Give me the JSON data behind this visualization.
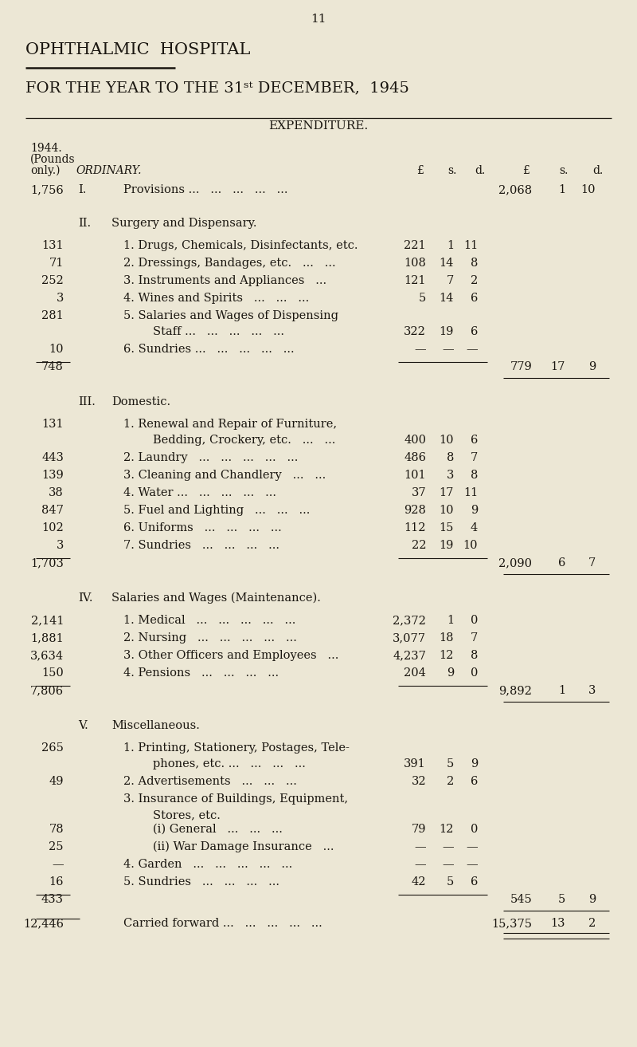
{
  "bg_color": "#ece7d5",
  "text_color": "#1a1610",
  "page_number": "11",
  "title1": "OPHTHALMIC  HOSPITAL",
  "title2": "FOR THE YEAR TO THE 31ˢᵗ DECEMBER,  1945",
  "expenditure_header": "EXPENDITURE.",
  "rows": [
    {
      "lv": "1,756",
      "roman": "I.",
      "desc": "Provisions ...   ...   ...   ...   ...",
      "iv": "",
      "is": "",
      "id": "",
      "rv": "2,068",
      "rs": "1",
      "rd": "10",
      "type": "main"
    },
    {
      "lv": "",
      "roman": "II.",
      "desc": "Surgery and Dispensary.",
      "iv": "",
      "is": "",
      "id": "",
      "rv": "",
      "rs": "",
      "rd": "",
      "type": "section"
    },
    {
      "lv": "131",
      "roman": "",
      "desc": "1. Drugs, Chemicals, Disinfectants, etc.",
      "iv": "221",
      "is": "1",
      "id": "11",
      "rv": "",
      "rs": "",
      "rd": "",
      "type": "sub"
    },
    {
      "lv": "71",
      "roman": "",
      "desc": "2. Dressings, Bandages, etc.   ...   ...",
      "iv": "108",
      "is": "14",
      "id": "8",
      "rv": "",
      "rs": "",
      "rd": "",
      "type": "sub"
    },
    {
      "lv": "252",
      "roman": "",
      "desc": "3. Instruments and Appliances   ...",
      "iv": "121",
      "is": "7",
      "id": "2",
      "rv": "",
      "rs": "",
      "rd": "",
      "type": "sub"
    },
    {
      "lv": "3",
      "roman": "",
      "desc": "4. Wines and Spirits   ...   ...   ...",
      "iv": "5",
      "is": "14",
      "id": "6",
      "rv": "",
      "rs": "",
      "rd": "",
      "type": "sub"
    },
    {
      "lv": "281",
      "roman": "",
      "desc": "5. Salaries and Wages of Dispensing",
      "iv": "",
      "is": "",
      "id": "",
      "rv": "",
      "rs": "",
      "rd": "",
      "type": "sub_a"
    },
    {
      "lv": "",
      "roman": "",
      "desc": "        Staff ...   ...   ...   ...   ...",
      "iv": "322",
      "is": "19",
      "id": "6",
      "rv": "",
      "rs": "",
      "rd": "",
      "type": "sub_b"
    },
    {
      "lv": "10",
      "roman": "",
      "desc": "6. Sundries ...   ...   ...   ...   ...",
      "iv": "—",
      "is": "—",
      "id": "—",
      "rv": "",
      "rs": "",
      "rd": "",
      "type": "sub"
    },
    {
      "lv": "748",
      "roman": "",
      "desc": "",
      "iv": "",
      "is": "",
      "id": "",
      "rv": "779",
      "rs": "17",
      "rd": "9",
      "type": "subtotal"
    },
    {
      "lv": "",
      "roman": "III.",
      "desc": "Domestic.",
      "iv": "",
      "is": "",
      "id": "",
      "rv": "",
      "rs": "",
      "rd": "",
      "type": "section"
    },
    {
      "lv": "131",
      "roman": "",
      "desc": "1. Renewal and Repair of Furniture,",
      "iv": "",
      "is": "",
      "id": "",
      "rv": "",
      "rs": "",
      "rd": "",
      "type": "sub_a"
    },
    {
      "lv": "",
      "roman": "",
      "desc": "        Bedding, Crockery, etc.   ...   ...",
      "iv": "400",
      "is": "10",
      "id": "6",
      "rv": "",
      "rs": "",
      "rd": "",
      "type": "sub_b"
    },
    {
      "lv": "443",
      "roman": "",
      "desc": "2. Laundry   ...   ...   ...   ...   ...",
      "iv": "486",
      "is": "8",
      "id": "7",
      "rv": "",
      "rs": "",
      "rd": "",
      "type": "sub"
    },
    {
      "lv": "139",
      "roman": "",
      "desc": "3. Cleaning and Chandlery   ...   ...",
      "iv": "101",
      "is": "3",
      "id": "8",
      "rv": "",
      "rs": "",
      "rd": "",
      "type": "sub"
    },
    {
      "lv": "38",
      "roman": "",
      "desc": "4. Water ...   ...   ...   ...   ...",
      "iv": "37",
      "is": "17",
      "id": "11",
      "rv": "",
      "rs": "",
      "rd": "",
      "type": "sub"
    },
    {
      "lv": "847",
      "roman": "",
      "desc": "5. Fuel and Lighting   ...   ...   ...",
      "iv": "928",
      "is": "10",
      "id": "9",
      "rv": "",
      "rs": "",
      "rd": "",
      "type": "sub"
    },
    {
      "lv": "102",
      "roman": "",
      "desc": "6. Uniforms   ...   ...   ...   ...",
      "iv": "112",
      "is": "15",
      "id": "4",
      "rv": "",
      "rs": "",
      "rd": "",
      "type": "sub"
    },
    {
      "lv": "3",
      "roman": "",
      "desc": "7. Sundries   ...   ...   ...   ...",
      "iv": "22",
      "is": "19",
      "id": "10",
      "rv": "",
      "rs": "",
      "rd": "",
      "type": "sub"
    },
    {
      "lv": "1,703",
      "roman": "",
      "desc": "",
      "iv": "",
      "is": "",
      "id": "",
      "rv": "2,090",
      "rs": "6",
      "rd": "7",
      "type": "subtotal"
    },
    {
      "lv": "",
      "roman": "IV.",
      "desc": "Salaries and Wages (Maintenance).",
      "iv": "",
      "is": "",
      "id": "",
      "rv": "",
      "rs": "",
      "rd": "",
      "type": "section"
    },
    {
      "lv": "2,141",
      "roman": "",
      "desc": "1. Medical   ...   ...   ...   ...   ...",
      "iv": "2,372",
      "is": "1",
      "id": "0",
      "rv": "",
      "rs": "",
      "rd": "",
      "type": "sub"
    },
    {
      "lv": "1,881",
      "roman": "",
      "desc": "2. Nursing   ...   ...   ...   ...   ...",
      "iv": "3,077",
      "is": "18",
      "id": "7",
      "rv": "",
      "rs": "",
      "rd": "",
      "type": "sub"
    },
    {
      "lv": "3,634",
      "roman": "",
      "desc": "3. Other Officers and Employees   ...",
      "iv": "4,237",
      "is": "12",
      "id": "8",
      "rv": "",
      "rs": "",
      "rd": "",
      "type": "sub"
    },
    {
      "lv": "150",
      "roman": "",
      "desc": "4. Pensions   ...   ...   ...   ...",
      "iv": "204",
      "is": "9",
      "id": "0",
      "rv": "",
      "rs": "",
      "rd": "",
      "type": "sub"
    },
    {
      "lv": "7,806",
      "roman": "",
      "desc": "",
      "iv": "",
      "is": "",
      "id": "",
      "rv": "9,892",
      "rs": "1",
      "rd": "3",
      "type": "subtotal"
    },
    {
      "lv": "",
      "roman": "V.",
      "desc": "Miscellaneous.",
      "iv": "",
      "is": "",
      "id": "",
      "rv": "",
      "rs": "",
      "rd": "",
      "type": "section"
    },
    {
      "lv": "265",
      "roman": "",
      "desc": "1. Printing, Stationery, Postages, Tele-",
      "iv": "",
      "is": "",
      "id": "",
      "rv": "",
      "rs": "",
      "rd": "",
      "type": "sub_a"
    },
    {
      "lv": "",
      "roman": "",
      "desc": "        phones, etc. ...   ...   ...   ...",
      "iv": "391",
      "is": "5",
      "id": "9",
      "rv": "",
      "rs": "",
      "rd": "",
      "type": "sub_b"
    },
    {
      "lv": "49",
      "roman": "",
      "desc": "2. Advertisements   ...   ...   ...",
      "iv": "32",
      "is": "2",
      "id": "6",
      "rv": "",
      "rs": "",
      "rd": "",
      "type": "sub"
    },
    {
      "lv": "",
      "roman": "",
      "desc": "3. Insurance of Buildings, Equipment,",
      "iv": "",
      "is": "",
      "id": "",
      "rv": "",
      "rs": "",
      "rd": "",
      "type": "sub_a"
    },
    {
      "lv": "",
      "roman": "",
      "desc": "        Stores, etc.",
      "iv": "",
      "is": "",
      "id": "",
      "rv": "",
      "rs": "",
      "rd": "",
      "type": "sub_b_empty"
    },
    {
      "lv": "78",
      "roman": "",
      "desc": "        (i) General   ...   ...   ...",
      "iv": "79",
      "is": "12",
      "id": "0",
      "rv": "",
      "rs": "",
      "rd": "",
      "type": "sub"
    },
    {
      "lv": "25",
      "roman": "",
      "desc": "        (ii) War Damage Insurance   ...",
      "iv": "—",
      "is": "—",
      "id": "—",
      "rv": "",
      "rs": "",
      "rd": "",
      "type": "sub"
    },
    {
      "lv": "—",
      "roman": "",
      "desc": "4. Garden   ...   ...   ...   ...   ...",
      "iv": "—",
      "is": "—",
      "id": "—",
      "rv": "",
      "rs": "",
      "rd": "",
      "type": "sub"
    },
    {
      "lv": "16",
      "roman": "",
      "desc": "5. Sundries   ...   ...   ...   ...",
      "iv": "42",
      "is": "5",
      "id": "6",
      "rv": "",
      "rs": "",
      "rd": "",
      "type": "sub"
    },
    {
      "lv": "433",
      "roman": "",
      "desc": "",
      "iv": "",
      "is": "",
      "id": "",
      "rv": "545",
      "rs": "5",
      "rd": "9",
      "type": "subtotal"
    },
    {
      "lv": "12,446",
      "roman": "",
      "desc": "Carried forward ...   ...   ...   ...   ...",
      "iv": "",
      "is": "",
      "id": "",
      "rv": "15,375",
      "rs": "13",
      "rd": "2",
      "type": "total"
    }
  ]
}
